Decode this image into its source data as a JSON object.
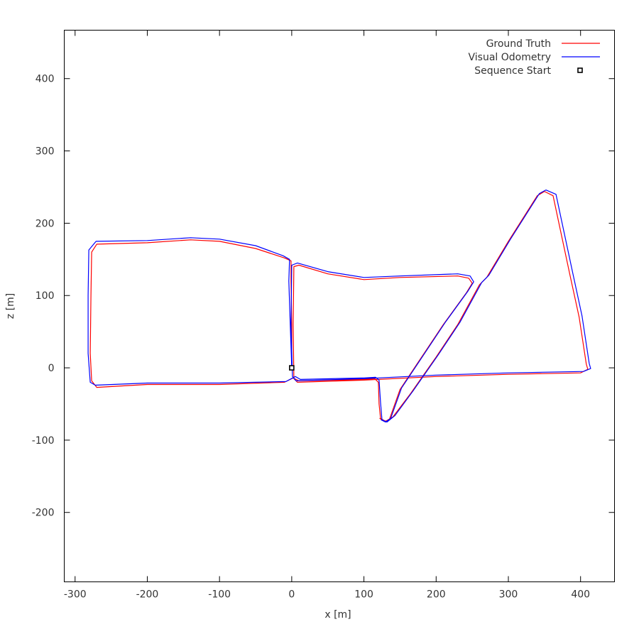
{
  "chart_data": {
    "type": "line",
    "xlabel": "x [m]",
    "ylabel": "z [m]",
    "xlim": [
      -315,
      447
    ],
    "ylim": [
      -296,
      467
    ],
    "xticks": [
      -300,
      -200,
      -100,
      0,
      100,
      200,
      300,
      400
    ],
    "yticks": [
      -200,
      -100,
      0,
      100,
      200,
      300,
      400
    ],
    "xtick_labels": [
      "-300",
      "-200",
      "-100",
      "0",
      "100",
      "200",
      "300",
      "400"
    ],
    "ytick_labels": [
      "-200",
      "-100",
      "0",
      "100",
      "200",
      "300",
      "400"
    ],
    "grid": false,
    "legend_position": "top-right",
    "legend": [
      {
        "label": "Ground Truth",
        "color": "#ff0000",
        "kind": "line"
      },
      {
        "label": "Visual Odometry",
        "color": "#0000ff",
        "kind": "line"
      },
      {
        "label": "Sequence Start",
        "color": "#000000",
        "kind": "square-marker"
      }
    ],
    "series": [
      {
        "name": "Ground Truth",
        "color": "#ff0000",
        "points": [
          [
            0,
            0
          ],
          [
            0,
            60
          ],
          [
            -1,
            120
          ],
          [
            -1,
            148
          ],
          [
            -10,
            152
          ],
          [
            -50,
            165
          ],
          [
            -100,
            175
          ],
          [
            -140,
            177
          ],
          [
            -200,
            173
          ],
          [
            -270,
            171
          ],
          [
            -277,
            160
          ],
          [
            -278,
            100
          ],
          [
            -279,
            20
          ],
          [
            -277,
            -18
          ],
          [
            -270,
            -27
          ],
          [
            -200,
            -23
          ],
          [
            -100,
            -23
          ],
          [
            -10,
            -20
          ],
          [
            2,
            -14
          ],
          [
            10,
            -18
          ],
          [
            100,
            -16
          ],
          [
            115,
            -15
          ],
          [
            120,
            -20
          ],
          [
            121,
            -50
          ],
          [
            123,
            -70
          ],
          [
            130,
            -74
          ],
          [
            140,
            -68
          ],
          [
            165,
            -35
          ],
          [
            200,
            15
          ],
          [
            230,
            60
          ],
          [
            260,
            115
          ],
          [
            270,
            125
          ],
          [
            300,
            175
          ],
          [
            340,
            238
          ],
          [
            350,
            244
          ],
          [
            362,
            238
          ],
          [
            370,
            200
          ],
          [
            385,
            130
          ],
          [
            398,
            70
          ],
          [
            408,
            5
          ],
          [
            410,
            -2
          ],
          [
            400,
            -7
          ],
          [
            300,
            -9
          ],
          [
            200,
            -12
          ],
          [
            100,
            -17
          ],
          [
            8,
            -20
          ],
          [
            3,
            -15
          ],
          [
            2,
            60
          ],
          [
            3,
            140
          ],
          [
            10,
            142
          ],
          [
            50,
            130
          ],
          [
            100,
            122
          ],
          [
            150,
            125
          ],
          [
            230,
            127
          ],
          [
            245,
            124
          ],
          [
            250,
            117
          ],
          [
            242,
            104
          ],
          [
            210,
            60
          ],
          [
            180,
            15
          ],
          [
            150,
            -30
          ],
          [
            135,
            -72
          ],
          [
            128,
            -74
          ],
          [
            122,
            -70
          ]
        ]
      },
      {
        "name": "Visual Odometry",
        "color": "#0000ff",
        "points": [
          [
            0,
            0
          ],
          [
            -2,
            60
          ],
          [
            -4,
            120
          ],
          [
            -3,
            150
          ],
          [
            -12,
            155
          ],
          [
            -50,
            169
          ],
          [
            -100,
            178
          ],
          [
            -140,
            180
          ],
          [
            -200,
            176
          ],
          [
            -271,
            175
          ],
          [
            -281,
            163
          ],
          [
            -282,
            100
          ],
          [
            -282,
            20
          ],
          [
            -279,
            -20
          ],
          [
            -272,
            -24
          ],
          [
            -200,
            -21
          ],
          [
            -100,
            -21
          ],
          [
            -8,
            -19
          ],
          [
            5,
            -12
          ],
          [
            12,
            -16
          ],
          [
            100,
            -14
          ],
          [
            116,
            -13
          ],
          [
            121,
            -17
          ],
          [
            123,
            -48
          ],
          [
            125,
            -72
          ],
          [
            132,
            -75
          ],
          [
            143,
            -66
          ],
          [
            168,
            -32
          ],
          [
            203,
            18
          ],
          [
            233,
            63
          ],
          [
            263,
            118
          ],
          [
            273,
            128
          ],
          [
            303,
            178
          ],
          [
            343,
            241
          ],
          [
            352,
            246
          ],
          [
            366,
            240
          ],
          [
            374,
            202
          ],
          [
            389,
            132
          ],
          [
            402,
            72
          ],
          [
            412,
            6
          ],
          [
            414,
            -1
          ],
          [
            404,
            -5
          ],
          [
            300,
            -7
          ],
          [
            200,
            -10
          ],
          [
            100,
            -15
          ],
          [
            6,
            -18
          ],
          [
            1,
            -12
          ],
          [
            -1,
            60
          ],
          [
            0,
            142
          ],
          [
            8,
            145
          ],
          [
            50,
            133
          ],
          [
            100,
            125
          ],
          [
            150,
            127
          ],
          [
            230,
            130
          ],
          [
            247,
            127
          ],
          [
            252,
            119
          ],
          [
            244,
            106
          ],
          [
            212,
            62
          ],
          [
            182,
            17
          ],
          [
            152,
            -28
          ],
          [
            137,
            -70
          ],
          [
            130,
            -75
          ],
          [
            124,
            -72
          ]
        ]
      }
    ],
    "start_point": [
      0,
      0
    ]
  }
}
